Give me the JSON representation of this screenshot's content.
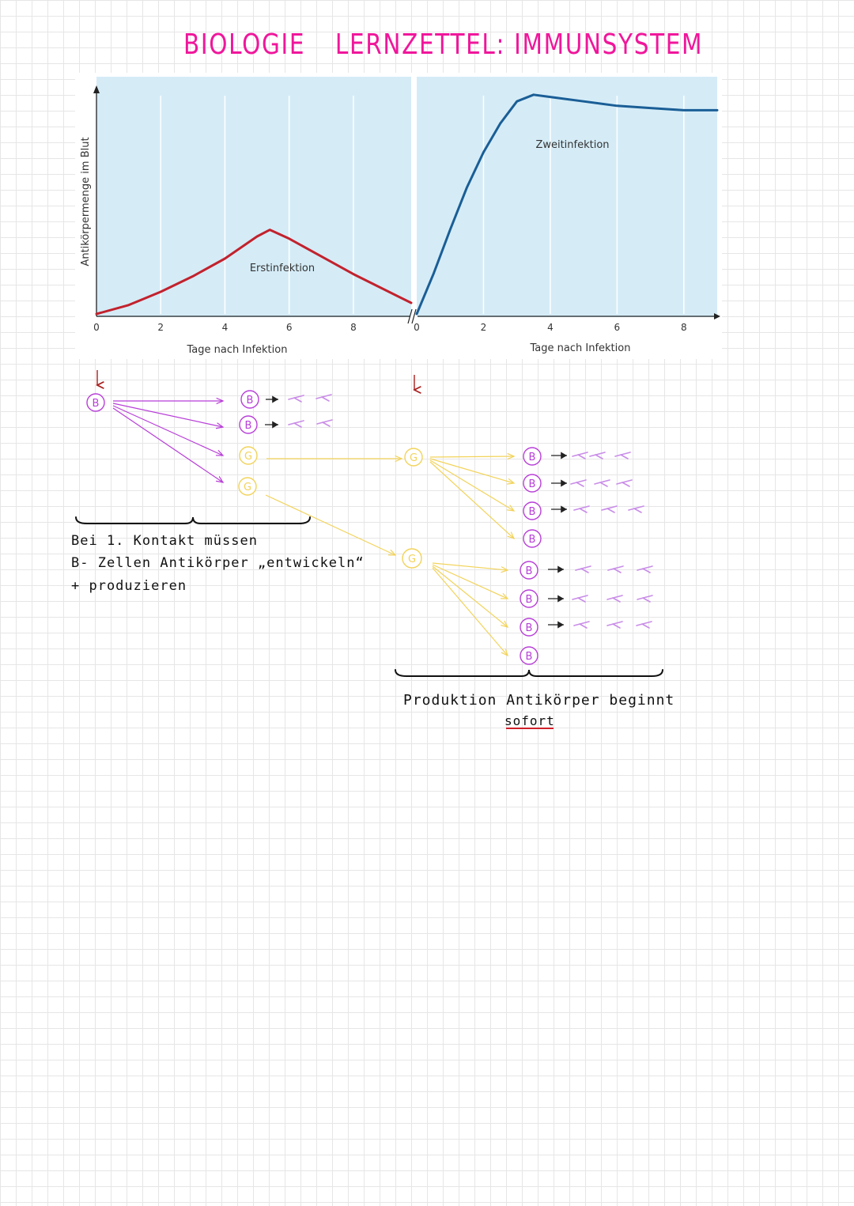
{
  "page": {
    "title_part1": "BIOLOGIE",
    "title_part2": "LERNZETTEL: IMMUNSYSTEM"
  },
  "colors": {
    "title": "#f0169b",
    "chart_bg": "#d5ecf7",
    "first_curve": "#c2222d",
    "second_curve": "#1a5e96",
    "bcell": "#b83fd8",
    "memory": "#f2d35a",
    "antibody": "#c98de8",
    "arrow_red": "#a8201f"
  },
  "chart_data": {
    "type": "line",
    "ylabel": "Antikörpermenge im Blut",
    "panels": [
      {
        "xlabel": "Tage nach Infektion",
        "x_ticks": [
          "0",
          "2",
          "4",
          "6",
          "8"
        ],
        "xlim": [
          0,
          9.8
        ],
        "ylim": [
          0,
          100
        ],
        "series": [
          {
            "name": "Erstinfektion",
            "x": [
              0,
              1,
              2,
              3,
              4,
              5,
              5.4,
              6,
              7,
              8,
              9.8
            ],
            "y": [
              0,
              4,
              10,
              17,
              25,
              35,
              38,
              34,
              26,
              18,
              5
            ]
          }
        ]
      },
      {
        "xlabel": "Tage nach Infektion",
        "x_ticks": [
          "0",
          "2",
          "4",
          "6",
          "8"
        ],
        "xlim": [
          0,
          9
        ],
        "ylim": [
          0,
          100
        ],
        "series": [
          {
            "name": "Zweitinfektion",
            "x": [
              0,
              0.5,
              1,
              1.5,
              2,
              2.5,
              3,
              3.5,
              4,
              5,
              6,
              7,
              8,
              9
            ],
            "y": [
              0,
              18,
              38,
              57,
              73,
              86,
              96,
              99,
              98,
              96,
              94,
              93,
              92,
              92
            ]
          }
        ]
      }
    ]
  },
  "sketch": {
    "cell_b": "B",
    "cell_g": "G",
    "note_left": {
      "line1": "Bei   1.  Kontakt   müssen",
      "line2": "B- Zellen  Antikörper „entwickeln“",
      "line3": "+  produzieren"
    },
    "note_right": {
      "line1": "Produktion    Antikörper  beginnt",
      "line2": "sofort"
    }
  }
}
